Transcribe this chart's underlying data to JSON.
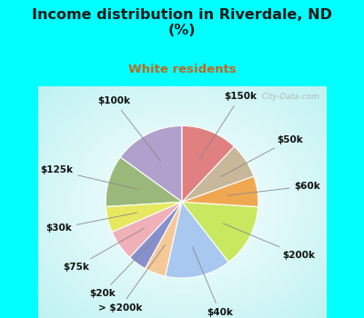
{
  "title": "Income distribution in Riverdale, ND\n(%)",
  "subtitle": "White residents",
  "title_color": "#1a1a1a",
  "subtitle_color": "#c06820",
  "bg_cyan": "#00ffff",
  "watermark": "City-Data.com",
  "chart_bg_colors": [
    "#ffffff",
    "#d0f0e8",
    "#a0e8d8",
    "#00ffff"
  ],
  "slices": [
    {
      "label": "$100k",
      "value": 15.0,
      "color": "#b0a0cc"
    },
    {
      "label": "$125k",
      "value": 11.0,
      "color": "#9ab87a"
    },
    {
      "label": "$30k",
      "value": 5.5,
      "color": "#e8e860"
    },
    {
      "label": "$75k",
      "value": 6.5,
      "color": "#f0b0b8"
    },
    {
      "label": "$20k",
      "value": 4.0,
      "color": "#8890cc"
    },
    {
      "label": "> $200k",
      "value": 4.5,
      "color": "#f5c898"
    },
    {
      "label": "$40k",
      "value": 14.0,
      "color": "#a8c8f0"
    },
    {
      "label": "$200k",
      "value": 13.5,
      "color": "#c8e860"
    },
    {
      "label": "$60k",
      "value": 6.5,
      "color": "#f0a850"
    },
    {
      "label": "$50k",
      "value": 7.5,
      "color": "#c8b89a"
    },
    {
      "label": "$150k",
      "value": 12.0,
      "color": "#e08080"
    }
  ],
  "label_fontsize": 7.5,
  "label_color": "#111111",
  "startangle": 90
}
